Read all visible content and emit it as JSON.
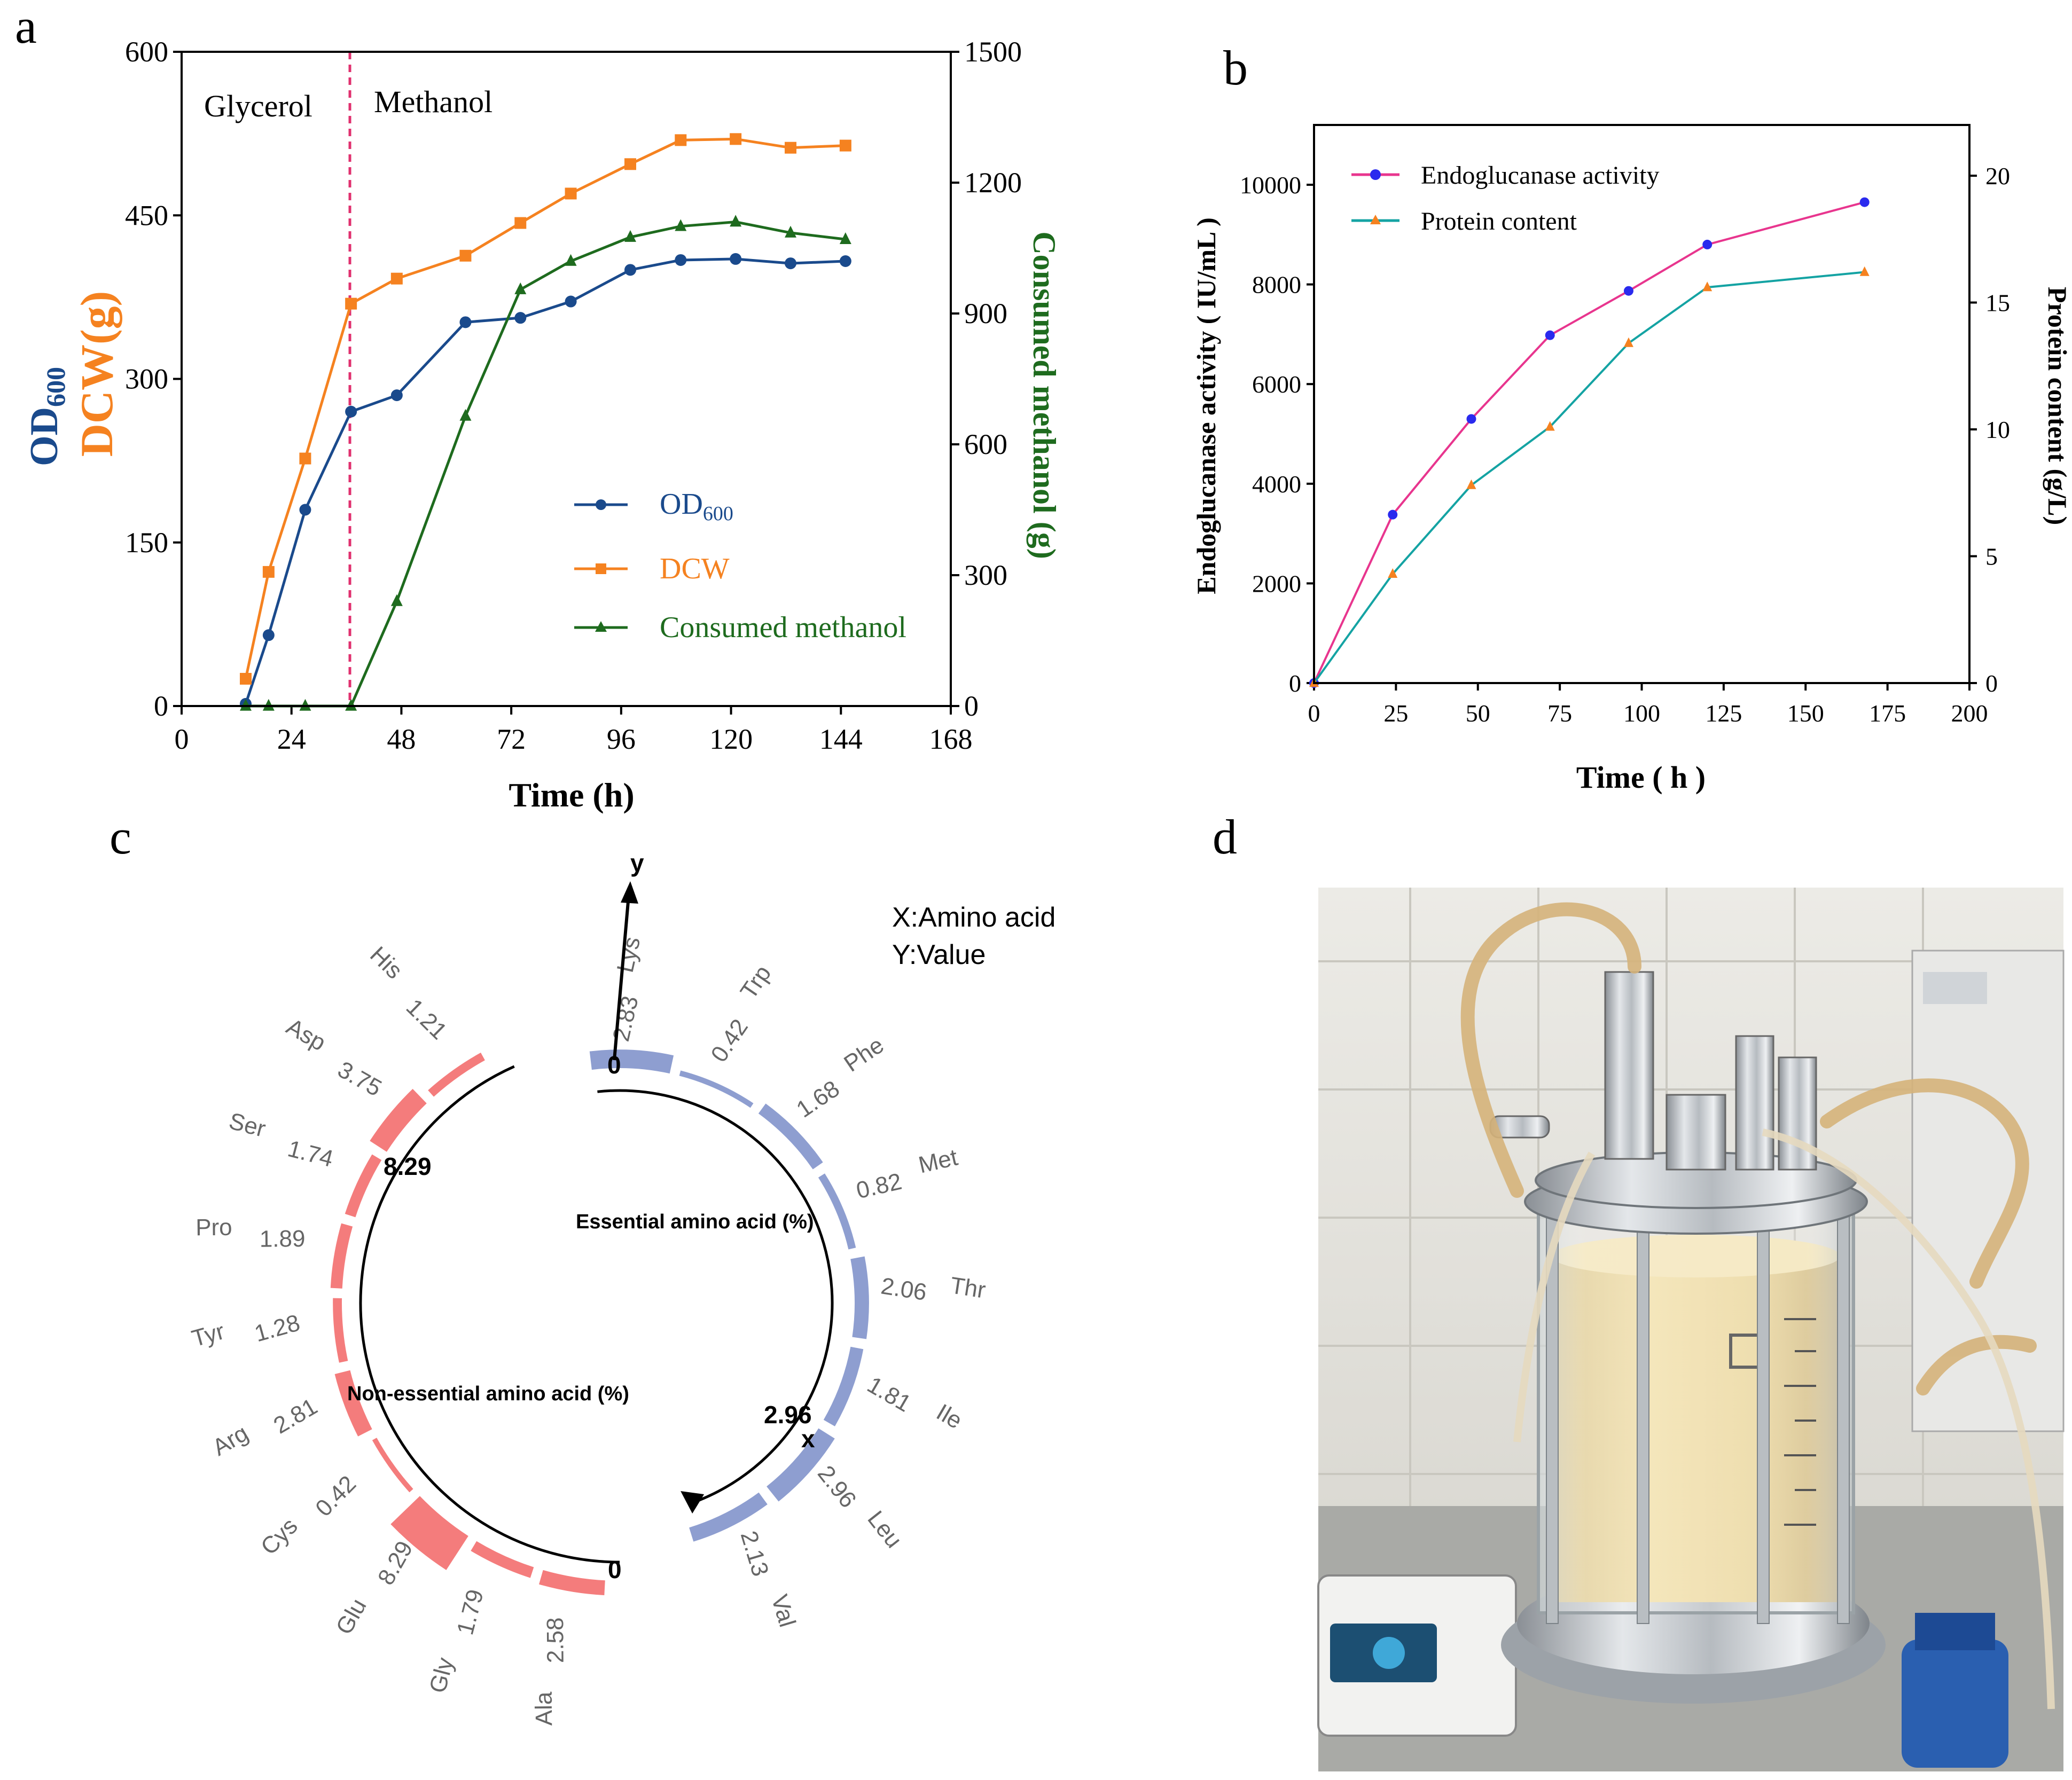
{
  "chart_data": [
    {
      "panel": "a",
      "type": "line",
      "x_label": "Time (h)",
      "x_ticks": [
        "0",
        "24",
        "48",
        "72",
        "96",
        "120",
        "144",
        "168"
      ],
      "x_range": [
        0,
        168
      ],
      "y_left_label": "OD600",
      "y_left_label_main": "OD",
      "y_left_label_sub": "600",
      "y_left_label2": "DCW(g)",
      "y_left_range": [
        0,
        600
      ],
      "y_left_ticks": [
        "0",
        "150",
        "300",
        "450",
        "600"
      ],
      "y_right_label": "Consumed methanol (g)",
      "y_right_range": [
        0,
        1500
      ],
      "y_right_ticks": [
        "0",
        "300",
        "600",
        "900",
        "1200",
        "1500"
      ],
      "phase_left": "Glycerol",
      "phase_right": "Methanol",
      "phase_switch_x": 37,
      "series": [
        {
          "name": "OD600",
          "name_main": "OD",
          "name_sub": "600",
          "axis": "left",
          "color": "#1a4a8c",
          "marker": "circle",
          "x": [
            14,
            19,
            27,
            37,
            47,
            62,
            74,
            85,
            98,
            109,
            121,
            133,
            145
          ],
          "y": [
            2,
            65,
            180,
            270,
            285,
            352,
            356,
            371,
            400,
            409,
            410,
            406,
            408
          ]
        },
        {
          "name": "DCW",
          "axis": "left",
          "color": "#f58220",
          "marker": "square",
          "x": [
            14,
            19,
            27,
            37,
            47,
            62,
            74,
            85,
            98,
            109,
            121,
            133,
            145
          ],
          "y": [
            25,
            123,
            227,
            369,
            392,
            413,
            443,
            470,
            497,
            519,
            520,
            512,
            514
          ]
        },
        {
          "name": "Consumed methanol",
          "axis": "right",
          "color": "#1e6b1e",
          "marker": "triangle",
          "x": [
            14,
            19,
            27,
            37,
            47,
            62,
            74,
            85,
            98,
            109,
            121,
            133,
            145
          ],
          "y": [
            0,
            0,
            0,
            0,
            240,
            665,
            955,
            1020,
            1075,
            1100,
            1110,
            1085,
            1070
          ]
        }
      ]
    },
    {
      "panel": "b",
      "type": "line",
      "x_label": "Time ( h )",
      "x_ticks": [
        "0",
        "25",
        "50",
        "75",
        "100",
        "125",
        "150",
        "175",
        "200"
      ],
      "x_range": [
        0,
        200
      ],
      "y_left_label": "Endoglucanase activity ( IU/mL )",
      "y_left_range": [
        0,
        11200
      ],
      "y_left_ticks": [
        "0",
        "2000",
        "4000",
        "6000",
        "8000",
        "10000"
      ],
      "y_right_label": "Protein content (g/L)",
      "y_right_range": [
        0,
        22
      ],
      "y_right_ticks": [
        "0",
        "5",
        "10",
        "15",
        "20"
      ],
      "series": [
        {
          "name": "Endoglucanase activity",
          "axis": "left",
          "color": "#e8358e",
          "marker_color": "#2a2aee",
          "marker": "circle",
          "x": [
            0,
            24,
            48,
            72,
            96,
            120,
            168
          ],
          "y": [
            0,
            3380,
            5300,
            6980,
            7870,
            8800,
            9650
          ]
        },
        {
          "name": "Protein content",
          "axis": "right",
          "color": "#14a3a3",
          "marker_color": "#f58220",
          "marker": "triangle",
          "x": [
            0,
            24,
            48,
            72,
            96,
            120,
            168
          ],
          "y": [
            0,
            4.3,
            7.8,
            10.1,
            13.4,
            15.6,
            16.2
          ]
        }
      ]
    },
    {
      "panel": "c",
      "type": "radial-bar",
      "x_axis_label": "X:Amino acid",
      "y_axis_label": "Y:Value",
      "axis_y_letter": "y",
      "axis_x_letter": "x",
      "essential": {
        "title": "Essential amino acid (%)",
        "color": "#8e9ed0",
        "max": 2.96,
        "zero_label": "0",
        "max_label": "2.96",
        "items": [
          {
            "name": "Lys",
            "value": 2.83,
            "label": "2.83"
          },
          {
            "name": "Trp",
            "value": 0.42,
            "label": "0.42"
          },
          {
            "name": "Phe",
            "value": 1.68,
            "label": "1.68"
          },
          {
            "name": "Met",
            "value": 0.82,
            "label": "0.82"
          },
          {
            "name": "Thr",
            "value": 2.06,
            "label": "2.06"
          },
          {
            "name": "Ile",
            "value": 1.81,
            "label": "1.81"
          },
          {
            "name": "Leu",
            "value": 2.96,
            "label": "2.96"
          },
          {
            "name": "Val",
            "value": 2.13,
            "label": "2.13"
          }
        ]
      },
      "nonessential": {
        "title": "Non-essential amino acid (%)",
        "color": "#f47c7c",
        "max": 8.29,
        "zero_label": "0",
        "max_label": "8.29",
        "items": [
          {
            "name": "His",
            "value": 1.21,
            "label": "1.21"
          },
          {
            "name": "Asp",
            "value": 3.75,
            "label": "3.75"
          },
          {
            "name": "Ser",
            "value": 1.74,
            "label": "1.74"
          },
          {
            "name": "Pro",
            "value": 1.89,
            "label": "1.89"
          },
          {
            "name": "Tyr",
            "value": 1.28,
            "label": "1.28"
          },
          {
            "name": "Arg",
            "value": 2.81,
            "label": "2.81"
          },
          {
            "name": "Cys",
            "value": 0.42,
            "label": "0.42"
          },
          {
            "name": "Glu",
            "value": 8.29,
            "label": "8.29"
          },
          {
            "name": "Gly",
            "value": 1.79,
            "label": "1.79"
          },
          {
            "name": "Ala",
            "value": 2.58,
            "label": "2.58"
          }
        ]
      }
    }
  ],
  "panel_letters": {
    "a": "a",
    "b": "b",
    "c": "c",
    "d": "d"
  },
  "photo": {
    "subject": "laboratory bioreactor fermenter with yellow culture broth"
  }
}
